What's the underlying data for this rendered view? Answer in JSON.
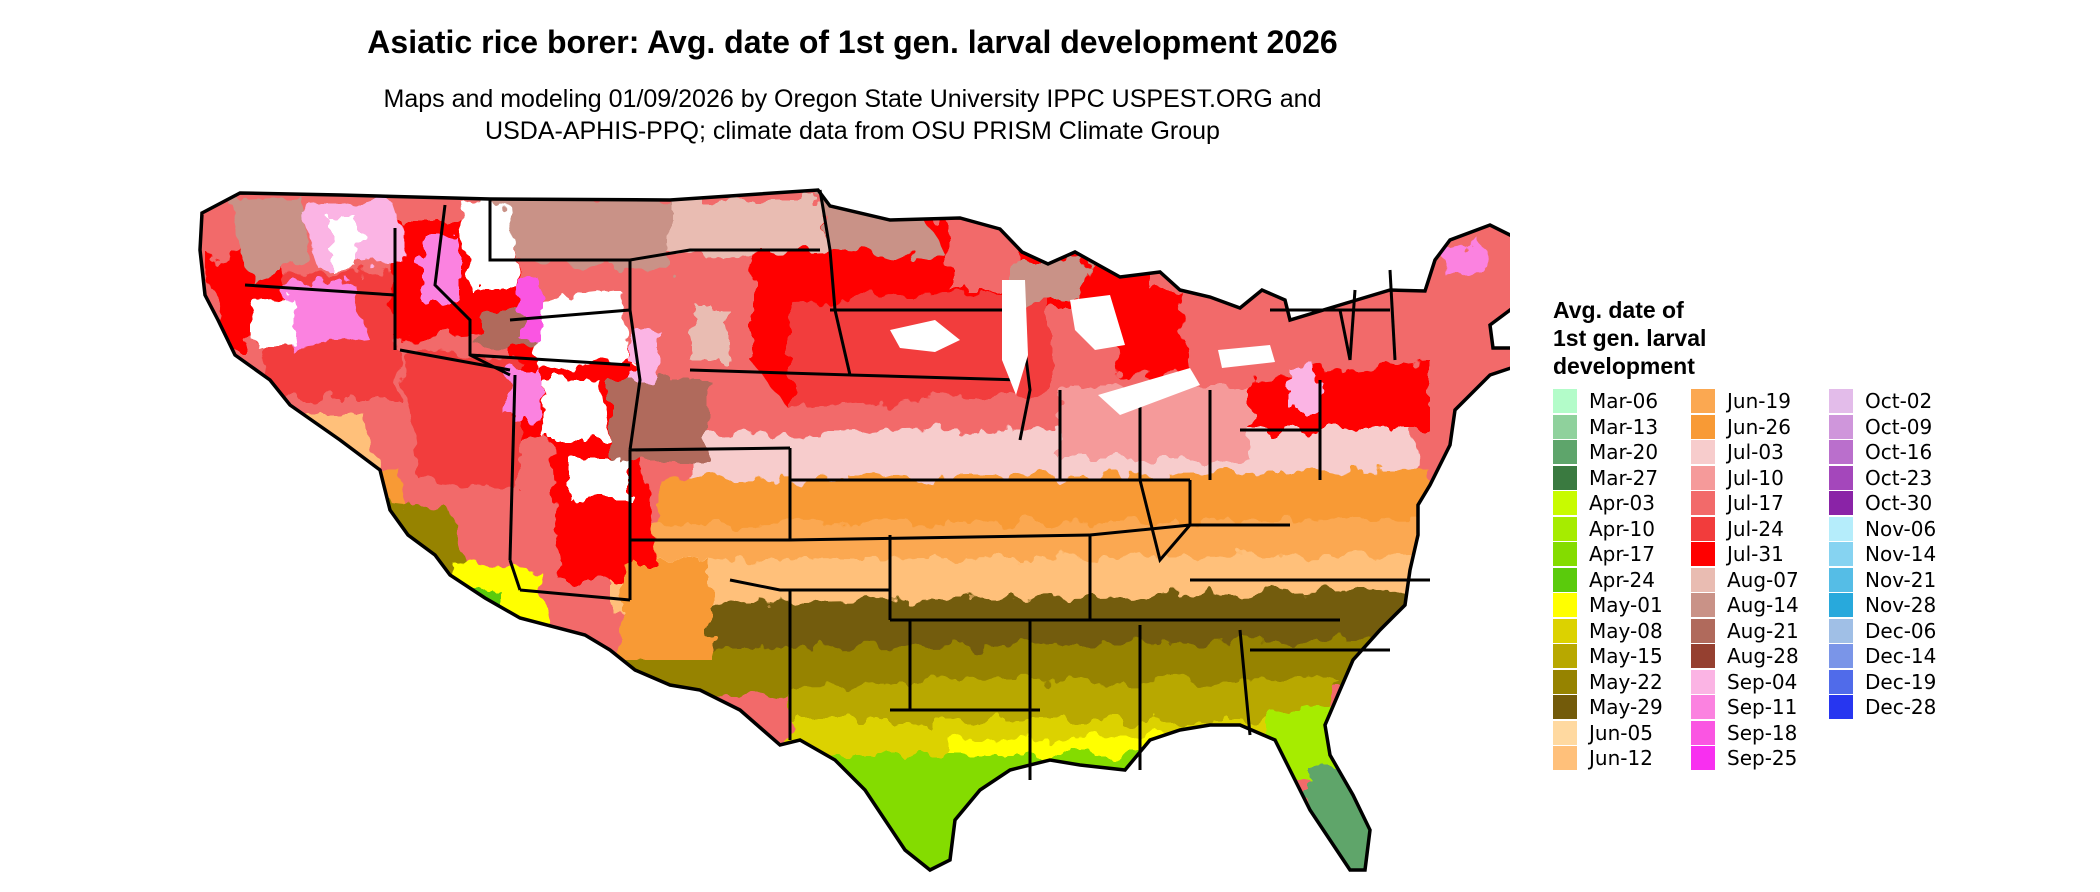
{
  "title": "Asiatic rice borer: Avg. date of 1st gen. larval development 2026",
  "subtitle": {
    "line1": "Maps and modeling 01/09/2026 by Oregon State University IPPC USPEST.ORG and",
    "line2": "USDA-APHIS-PPQ; climate data from OSU PRISM Climate Group"
  },
  "legend": {
    "title_lines": [
      "Avg. date of",
      "1st gen. larval",
      "development"
    ],
    "items": [
      {
        "label": "Mar-06",
        "color": "#b3fcc9"
      },
      {
        "label": "Mar-13",
        "color": "#8fd19c"
      },
      {
        "label": "Mar-20",
        "color": "#5ea56b"
      },
      {
        "label": "Mar-27",
        "color": "#3a7a40"
      },
      {
        "label": "Apr-03",
        "color": "#c8fb00"
      },
      {
        "label": "Apr-10",
        "color": "#a6ec00"
      },
      {
        "label": "Apr-17",
        "color": "#84dc00"
      },
      {
        "label": "Apr-24",
        "color": "#5acb0c"
      },
      {
        "label": "May-01",
        "color": "#ffff00"
      },
      {
        "label": "May-08",
        "color": "#dcd200"
      },
      {
        "label": "May-15",
        "color": "#b8a800"
      },
      {
        "label": "May-22",
        "color": "#968300"
      },
      {
        "label": "May-29",
        "color": "#735b0a"
      },
      {
        "label": "Jun-05",
        "color": "#ffd9a0"
      },
      {
        "label": "Jun-12",
        "color": "#ffc07a"
      },
      {
        "label": "Jun-19",
        "color": "#fba851"
      },
      {
        "label": "Jun-26",
        "color": "#f89a35"
      },
      {
        "label": "Jul-03",
        "color": "#f7cccc"
      },
      {
        "label": "Jul-10",
        "color": "#f59a9a"
      },
      {
        "label": "Jul-17",
        "color": "#f26a6a"
      },
      {
        "label": "Jul-24",
        "color": "#f23c3c"
      },
      {
        "label": "Jul-31",
        "color": "#ff0000"
      },
      {
        "label": "Aug-07",
        "color": "#e9bcb2"
      },
      {
        "label": "Aug-14",
        "color": "#c99287"
      },
      {
        "label": "Aug-21",
        "color": "#b06a5c"
      },
      {
        "label": "Aug-28",
        "color": "#954030"
      },
      {
        "label": "Sep-04",
        "color": "#fbb4e4"
      },
      {
        "label": "Sep-11",
        "color": "#fb82e0"
      },
      {
        "label": "Sep-18",
        "color": "#fa55e2"
      },
      {
        "label": "Sep-25",
        "color": "#f82ff0"
      },
      {
        "label": "Oct-02",
        "color": "#e3bcea"
      },
      {
        "label": "Oct-09",
        "color": "#cf96db"
      },
      {
        "label": "Oct-16",
        "color": "#ba6fcc"
      },
      {
        "label": "Oct-23",
        "color": "#a447bb"
      },
      {
        "label": "Oct-30",
        "color": "#8a23a7"
      },
      {
        "label": "Nov-06",
        "color": "#b5edfb"
      },
      {
        "label": "Nov-14",
        "color": "#86d3f1"
      },
      {
        "label": "Nov-21",
        "color": "#55bde6"
      },
      {
        "label": "Nov-28",
        "color": "#28a9dc"
      },
      {
        "label": "Dec-06",
        "color": "#a0bfe6"
      },
      {
        "label": "Dec-14",
        "color": "#7a95e8"
      },
      {
        "label": "Dec-19",
        "color": "#506bea"
      },
      {
        "label": "Dec-28",
        "color": "#2736f0"
      }
    ]
  }
}
